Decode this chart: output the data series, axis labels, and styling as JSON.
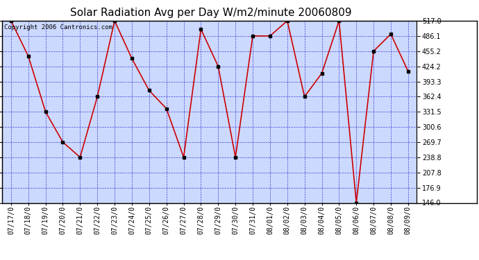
{
  "title": "Solar Radiation Avg per Day W/m2/minute 20060809",
  "copyright": "Copyright 2006 Cantronics.com",
  "dates": [
    "07/17",
    "07/18",
    "07/19",
    "07/20",
    "07/21",
    "07/22",
    "07/23",
    "07/24",
    "07/25",
    "07/26",
    "07/27",
    "07/28",
    "07/29",
    "07/30",
    "07/31",
    "08/01",
    "08/02",
    "08/03",
    "08/04",
    "08/05",
    "08/06",
    "08/07",
    "08/08",
    "08/09"
  ],
  "values": [
    517.0,
    445.0,
    331.5,
    269.7,
    238.8,
    362.4,
    517.0,
    440.0,
    375.0,
    338.0,
    238.8,
    500.0,
    424.2,
    238.8,
    486.1,
    486.1,
    517.0,
    362.4,
    410.0,
    517.0,
    146.0,
    455.2,
    490.0,
    414.0
  ],
  "ylim": [
    146.0,
    517.0
  ],
  "yticks": [
    146.0,
    176.9,
    207.8,
    238.8,
    269.7,
    300.6,
    331.5,
    362.4,
    393.3,
    424.2,
    455.2,
    486.1,
    517.0
  ],
  "line_color": "#cc0000",
  "marker_color": "#000000",
  "bg_color": "#ccd9ff",
  "grid_color": "#3333cc",
  "title_fontsize": 11,
  "tick_fontsize": 7,
  "copyright_fontsize": 6.5
}
